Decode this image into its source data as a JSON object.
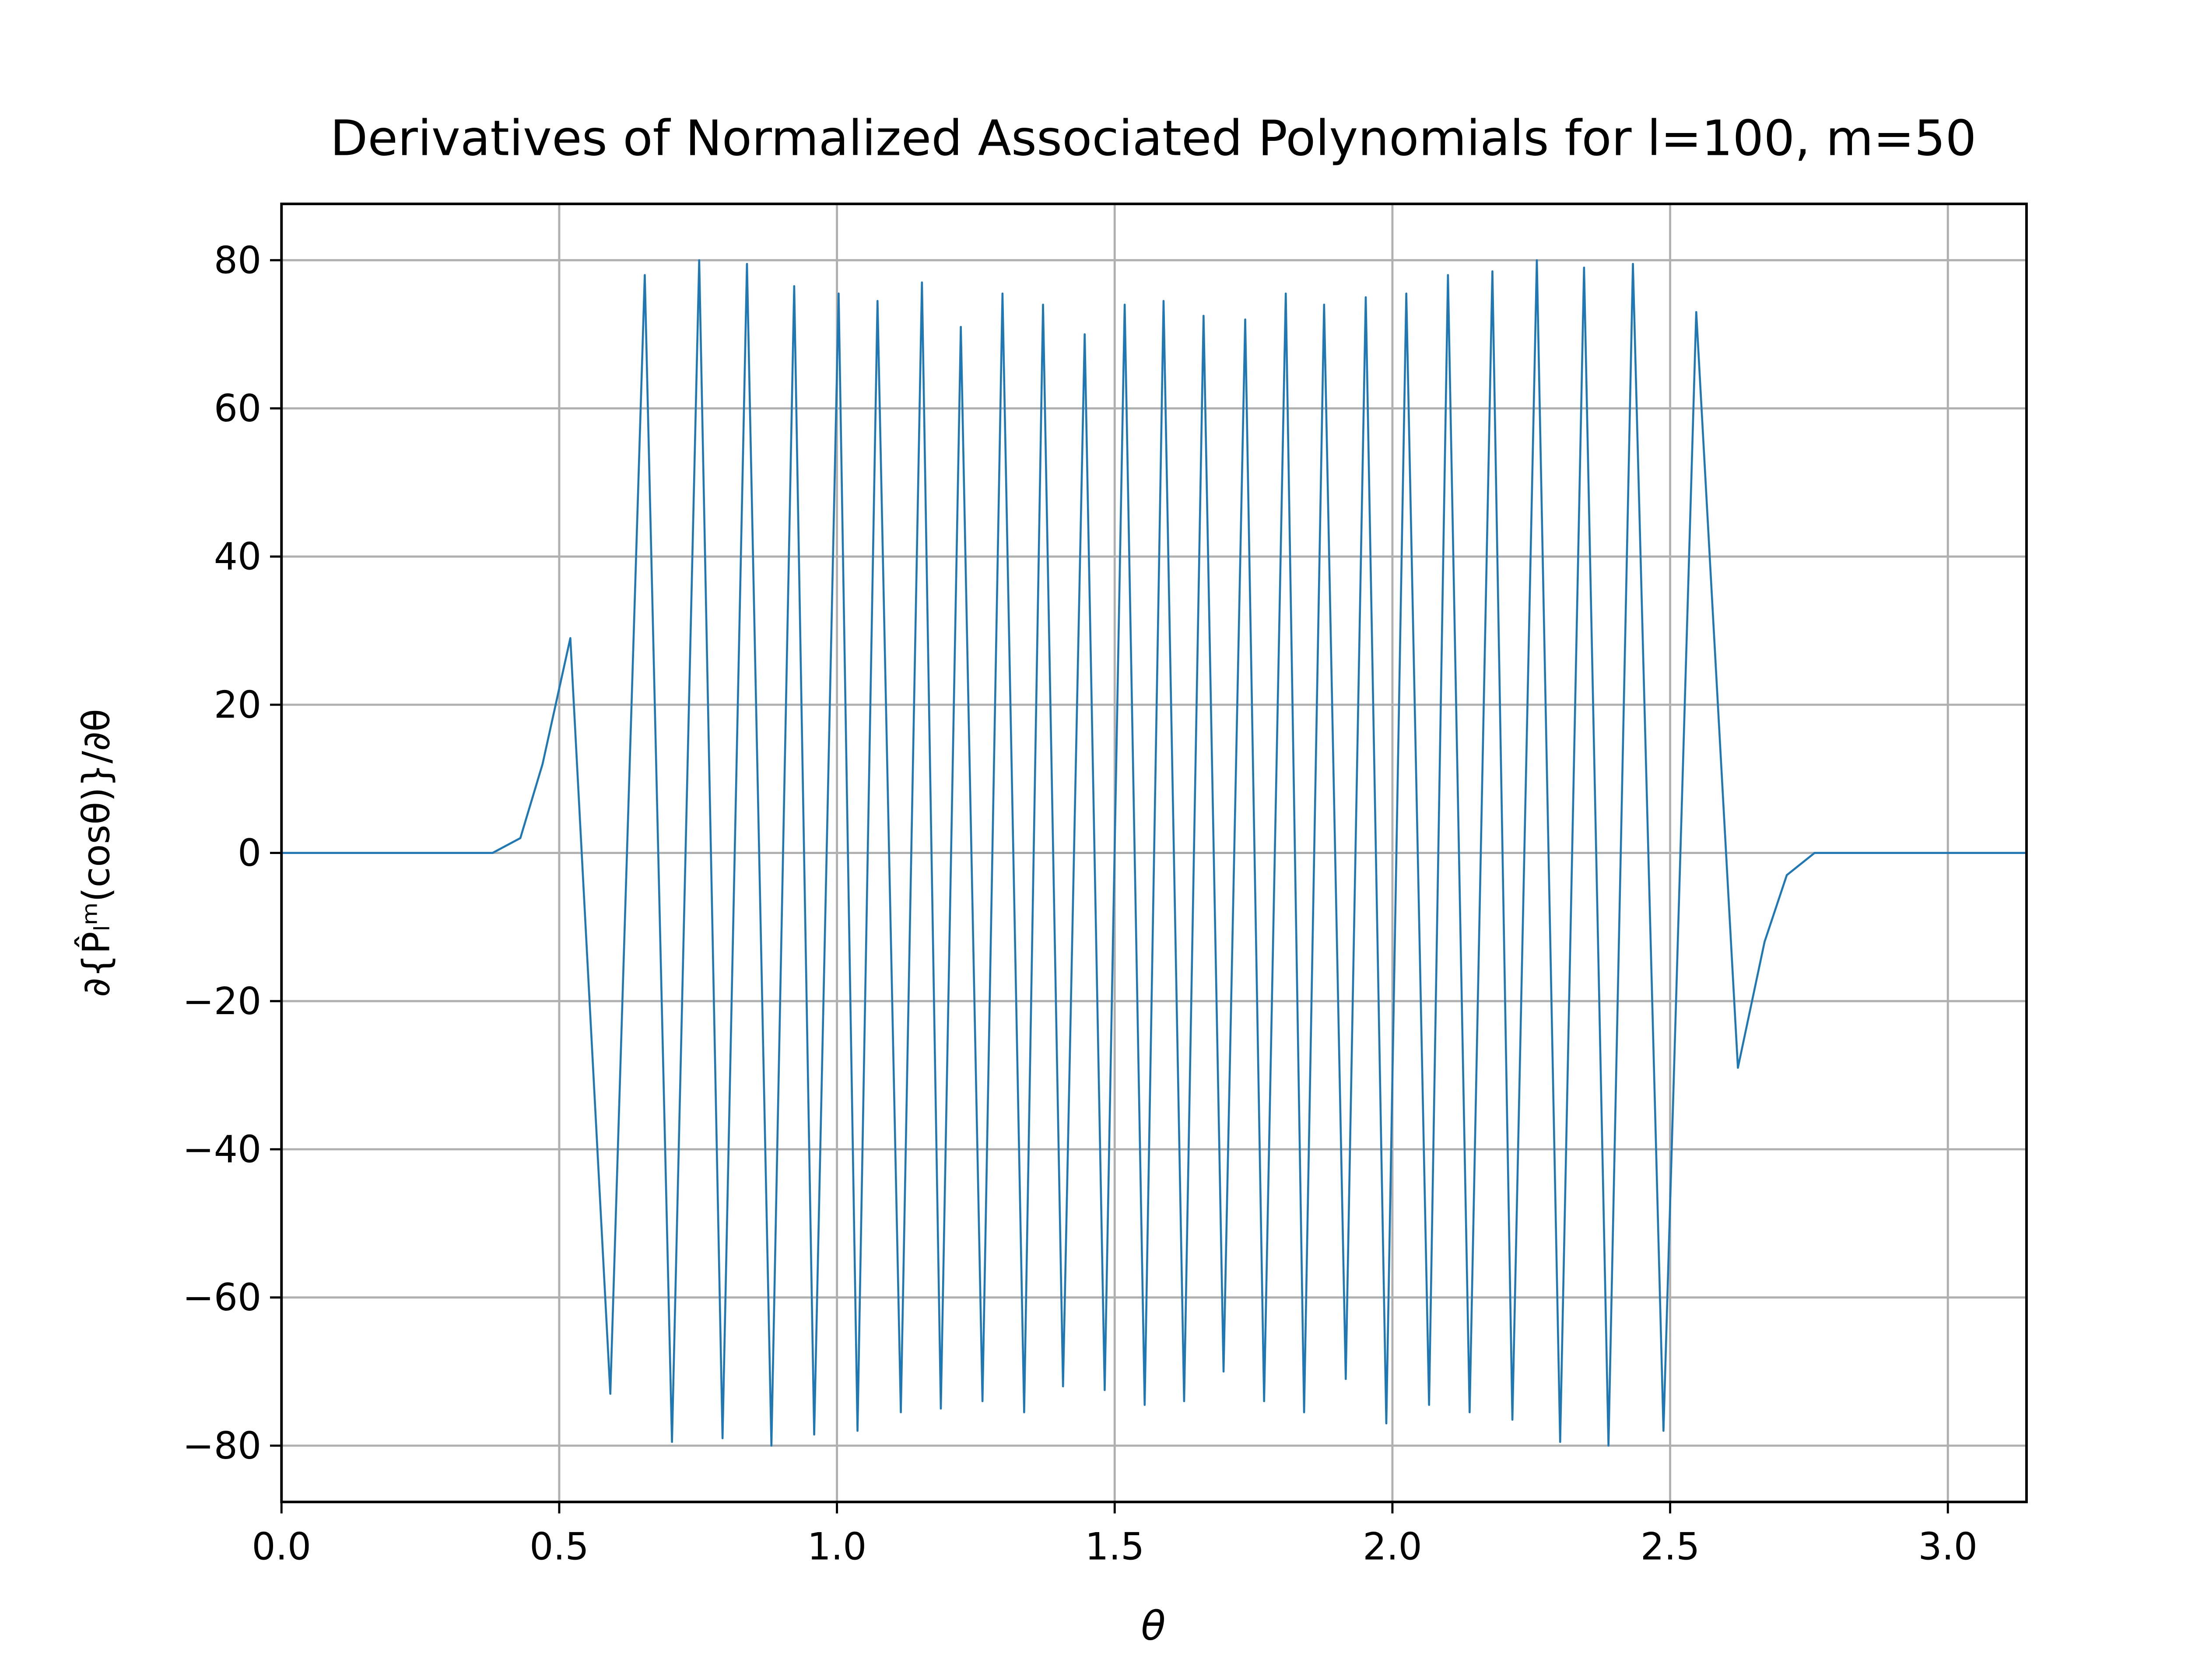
{
  "chart_data": {
    "type": "line",
    "title": "Derivatives of Normalized Associated Polynomials for l=100, m=50",
    "xlabel": "θ",
    "ylabel": "∂{P̂ₗᵐ(cosθ)}/∂θ",
    "x": [
      0,
      0.38,
      0.43,
      0.47,
      0.52,
      0.592,
      0.654,
      0.703,
      0.752,
      0.794,
      0.838,
      0.882,
      0.923,
      0.959,
      1.003,
      1.037,
      1.073,
      1.115,
      1.153,
      1.187,
      1.223,
      1.262,
      1.298,
      1.337,
      1.371,
      1.407,
      1.446,
      1.482,
      1.518,
      1.554,
      1.588,
      1.625,
      1.66,
      1.696,
      1.735,
      1.769,
      1.808,
      1.841,
      1.877,
      1.916,
      1.952,
      1.989,
      2.025,
      2.066,
      2.1,
      2.139,
      2.18,
      2.216,
      2.26,
      2.302,
      2.345,
      2.389,
      2.433,
      2.488,
      2.547,
      2.622,
      2.67,
      2.71,
      2.76,
      3.1416
    ],
    "series": [
      {
        "color": "#1f77b4",
        "values": [
          0,
          0,
          2,
          12,
          29,
          -73,
          78,
          -79.5,
          80,
          -79,
          79.5,
          -80,
          76.5,
          -78.5,
          75.5,
          -78,
          74.5,
          -75.5,
          77,
          -75,
          71,
          -74,
          75.5,
          -75.5,
          74,
          -72,
          70,
          -72.5,
          74,
          -74.5,
          74.5,
          -74,
          72.5,
          -70,
          72,
          -74,
          75.5,
          -75.5,
          74,
          -71,
          75,
          -77,
          75.5,
          -74.5,
          78,
          -75.5,
          78.5,
          -76.5,
          80,
          -79.5,
          79,
          -80,
          79.5,
          -78,
          73,
          -29,
          -12,
          -3,
          0,
          0
        ]
      }
    ],
    "xlim": [
      0,
      3.1416
    ],
    "xticks": [
      {
        "value": 0,
        "label": "0.0"
      },
      {
        "value": 0.5,
        "label": "0.5"
      },
      {
        "value": 1,
        "label": "1.0"
      },
      {
        "value": 1.5,
        "label": "1.5"
      },
      {
        "value": 2,
        "label": "2.0"
      },
      {
        "value": 2.5,
        "label": "2.5"
      },
      {
        "value": 3,
        "label": "3.0"
      }
    ],
    "ylim": [
      -87.6,
      87.6
    ],
    "yticks": [
      {
        "value": -80,
        "label": "−80"
      },
      {
        "value": -60,
        "label": "−60"
      },
      {
        "value": -40,
        "label": "−40"
      },
      {
        "value": -20,
        "label": "−20"
      },
      0,
      20,
      40,
      60,
      80
    ],
    "grid": true
  }
}
